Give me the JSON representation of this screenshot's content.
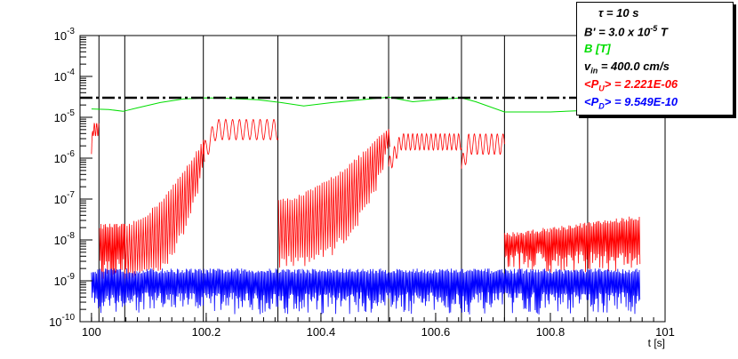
{
  "chart_data": {
    "type": "line",
    "xlabel": "t [s]",
    "xlim": [
      99.98,
      101.0
    ],
    "xticks": [
      100,
      100.2,
      100.4,
      100.6,
      100.8,
      101
    ],
    "xtick_labels": [
      "100",
      "100.2",
      "100.4",
      "100.6",
      "100.8",
      "101"
    ],
    "yscale": "log",
    "ylim": [
      1e-10,
      0.001
    ],
    "ytick_exponents": [
      -10,
      -9,
      -8,
      -7,
      -6,
      -5,
      -4,
      -3
    ],
    "ytick_base": "10",
    "grid": false,
    "legend_position": "top-right",
    "legend": {
      "tau": {
        "prefix": "τ = 10 s"
      },
      "bprime": {
        "prefix": "B' =  3.0 x 10",
        "exp": "-5",
        "suffix": " T"
      },
      "b": {
        "text": "B [T]",
        "color": "#00dd00"
      },
      "vin": {
        "prefix": "v",
        "sub": "in",
        "suffix": " =  400.0 cm/s"
      },
      "pu": {
        "prefix": "<P",
        "sub": "U",
        "suffix": "> = 2.221E-06",
        "color": "#ff0000"
      },
      "pd": {
        "prefix": "<P",
        "sub": "D",
        "suffix": "> = 9.549E-10",
        "color": "#0000ff"
      }
    },
    "vertical_lines": [
      100.013,
      100.058,
      100.195,
      100.325,
      100.518,
      100.645,
      100.72,
      100.865
    ],
    "reference_line": {
      "y": 3e-05,
      "style": "dash-dot",
      "color": "#000000"
    },
    "series": [
      {
        "name": "B [T]",
        "color": "#00dd00",
        "x": [
          100.0,
          100.03,
          100.055,
          100.08,
          100.12,
          100.16,
          100.2,
          100.24,
          100.29,
          100.33,
          100.37,
          100.42,
          100.47,
          100.518,
          100.56,
          100.6,
          100.63,
          100.645,
          100.67,
          100.72,
          100.76,
          100.8,
          100.85,
          100.9,
          100.955
        ],
        "y": [
          1.6e-05,
          1.55e-05,
          1.4e-05,
          1.7e-05,
          2.3e-05,
          2.8e-05,
          3e-05,
          2.9e-05,
          2.7e-05,
          2.3e-05,
          1.9e-05,
          2.3e-05,
          2.7e-05,
          3.1e-05,
          2.4e-05,
          2.7e-05,
          2.9e-05,
          3e-05,
          2.4e-05,
          1.35e-05,
          1.35e-05,
          1.35e-05,
          1.45e-05,
          1.6e-05,
          1.75e-05
        ]
      },
      {
        "name": "<PU>",
        "color": "#ff0000",
        "segments": [
          {
            "kind": "plateau",
            "x0": 100.0,
            "x1": 100.013,
            "level": 5e-06,
            "amp": 0.15,
            "period": 0.004
          },
          {
            "kind": "band",
            "x0": 100.014,
            "x1": 100.057,
            "low": 1e-09,
            "high": 2.5e-08,
            "period": 0.0025
          },
          {
            "kind": "rise",
            "x0": 100.058,
            "x1": 100.195,
            "start_high": 2.5e-08,
            "end_high": 3e-06,
            "low": 1e-09,
            "period": 0.004
          },
          {
            "kind": "plateau",
            "x0": 100.195,
            "x1": 100.325,
            "level": 5e-06,
            "amp": 0.25,
            "period": 0.012
          },
          {
            "kind": "rise",
            "x0": 100.326,
            "x1": 100.518,
            "start_high": 1e-07,
            "end_high": 6e-06,
            "low": 2e-09,
            "period": 0.004
          },
          {
            "kind": "plateau",
            "x0": 100.518,
            "x1": 100.645,
            "level": 2.5e-06,
            "amp": 0.2,
            "period": 0.008
          },
          {
            "kind": "plateau",
            "x0": 100.645,
            "x1": 100.72,
            "level": 2.2e-06,
            "amp": 0.25,
            "period": 0.01
          },
          {
            "kind": "band",
            "x0": 100.72,
            "x1": 100.955,
            "low": 1.5e-09,
            "high": 1.5e-08,
            "high_end": 4e-08,
            "period": 0.0025
          }
        ]
      },
      {
        "name": "<PD>",
        "color": "#0000ff",
        "segments": [
          {
            "kind": "band",
            "x0": 100.0,
            "x1": 100.955,
            "low": 1.5e-10,
            "high": 2e-09,
            "period": 0.0022
          }
        ]
      }
    ]
  }
}
